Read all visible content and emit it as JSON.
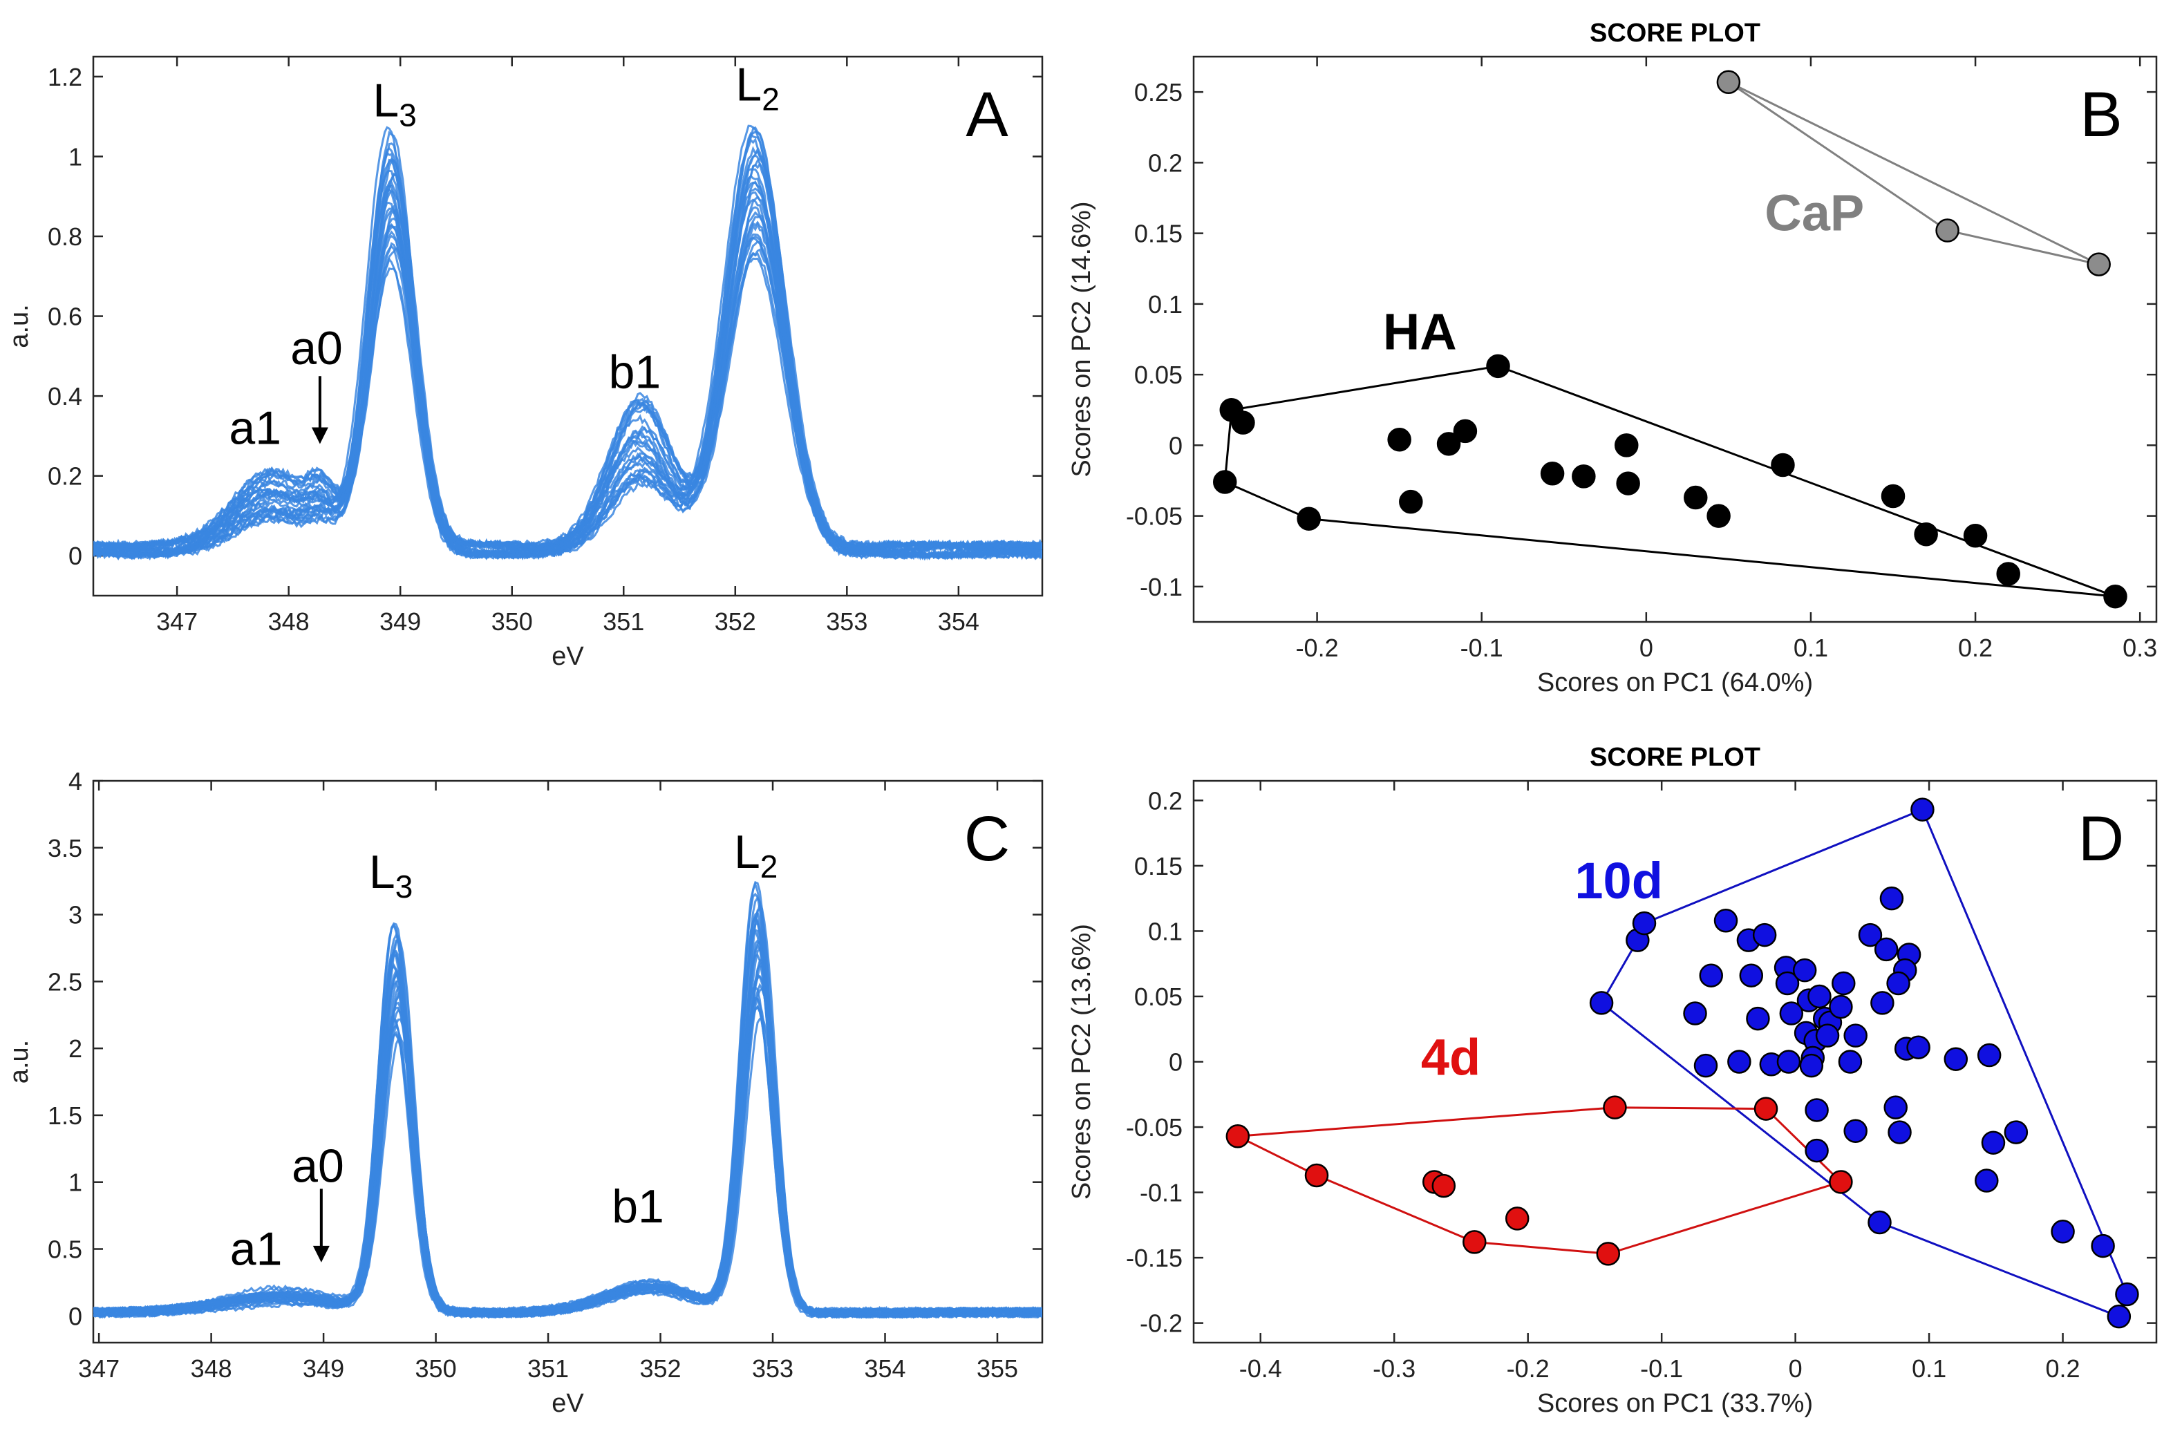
{
  "chart_data": [
    {
      "id": "A",
      "type": "line",
      "panel_letter": "A",
      "xlabel": "eV",
      "ylabel": "a.u.",
      "xlim": [
        346.25,
        354.75
      ],
      "ylim": [
        -0.1,
        1.25
      ],
      "xticks": [
        347,
        348,
        349,
        350,
        351,
        352,
        353,
        354
      ],
      "yticks": [
        0,
        0.2,
        0.4,
        0.6,
        0.8,
        1,
        1.2
      ],
      "ytick_labels": [
        "0",
        "0.2",
        "0.4",
        "0.6",
        "0.8",
        "1",
        "1.2"
      ],
      "series_color": "#3a86e0",
      "n_spectra": 30,
      "spectrum_shape": {
        "baseline": 0.03,
        "peaks": [
          {
            "center": 347.85,
            "width": 0.35,
            "height": 0.14
          },
          {
            "center": 348.3,
            "width": 0.12,
            "height": 0.07
          },
          {
            "center": 348.92,
            "width": 0.2,
            "height": 1.0
          },
          {
            "center": 351.15,
            "width": 0.28,
            "height": 0.28
          },
          {
            "center": 352.18,
            "width": 0.26,
            "height": 1.02
          }
        ],
        "scale_range": [
          0.72,
          1.04
        ]
      },
      "annotations": [
        {
          "label": "L",
          "sub": "3",
          "x": 348.95,
          "y": 1.1
        },
        {
          "label": "L",
          "sub": "2",
          "x": 352.2,
          "y": 1.14
        },
        {
          "label": "a0",
          "x": 348.25,
          "y": 0.48
        },
        {
          "label": "a1",
          "x": 347.7,
          "y": 0.28
        },
        {
          "label": "b1",
          "x": 351.1,
          "y": 0.42
        }
      ],
      "arrow": {
        "x": 348.28,
        "y_from": 0.45,
        "y_to": 0.28
      }
    },
    {
      "id": "B",
      "type": "scatter",
      "title": "SCORE PLOT",
      "panel_letter": "B",
      "xlabel": "Scores on PC1 (64.0%)",
      "ylabel": "Scores on PC2 (14.6%)",
      "xlim": [
        -0.275,
        0.31
      ],
      "ylim": [
        -0.125,
        0.275
      ],
      "xticks": [
        -0.2,
        -0.1,
        0,
        0.1,
        0.2,
        0.3
      ],
      "xtick_labels": [
        "-0.2",
        "-0.1",
        "0",
        "0.1",
        "0.2",
        "0.3"
      ],
      "yticks": [
        -0.1,
        -0.05,
        0,
        0.05,
        0.1,
        0.15,
        0.2,
        0.25
      ],
      "ytick_labels": [
        "-0.1",
        "-0.05",
        "0",
        "0.05",
        "0.1",
        "0.15",
        "0.2",
        "0.25"
      ],
      "series": [
        {
          "name": "HA",
          "label_color": "#000000",
          "fill": "#000000",
          "hull_color": "#000000",
          "label_pos": [
            -0.16,
            0.068
          ],
          "points": [
            [
              -0.252,
              0.025
            ],
            [
              -0.245,
              0.016
            ],
            [
              -0.256,
              -0.026
            ],
            [
              -0.205,
              -0.052
            ],
            [
              -0.09,
              0.056
            ],
            [
              -0.15,
              0.004
            ],
            [
              -0.143,
              -0.04
            ],
            [
              -0.12,
              0.001
            ],
            [
              -0.11,
              0.01
            ],
            [
              -0.057,
              -0.02
            ],
            [
              -0.038,
              -0.022
            ],
            [
              -0.012,
              0.0
            ],
            [
              -0.011,
              -0.027
            ],
            [
              0.03,
              -0.037
            ],
            [
              0.044,
              -0.05
            ],
            [
              0.083,
              -0.014
            ],
            [
              0.15,
              -0.036
            ],
            [
              0.17,
              -0.063
            ],
            [
              0.2,
              -0.064
            ],
            [
              0.22,
              -0.091
            ],
            [
              0.285,
              -0.107
            ]
          ],
          "hull": [
            [
              -0.09,
              0.056
            ],
            [
              -0.252,
              0.025
            ],
            [
              -0.256,
              -0.026
            ],
            [
              -0.205,
              -0.052
            ],
            [
              0.285,
              -0.107
            ]
          ]
        },
        {
          "name": "CaP",
          "label_color": "#808080",
          "fill": "#8c8c8c",
          "hull_color": "#808080",
          "label_pos": [
            0.072,
            0.152
          ],
          "points": [
            [
              0.05,
              0.257
            ],
            [
              0.183,
              0.152
            ],
            [
              0.275,
              0.128
            ]
          ],
          "hull": [
            [
              0.05,
              0.257
            ],
            [
              0.183,
              0.152
            ],
            [
              0.275,
              0.128
            ]
          ]
        }
      ]
    },
    {
      "id": "C",
      "type": "line",
      "panel_letter": "C",
      "xlabel": "eV",
      "ylabel": "a.u.",
      "xlim": [
        346.95,
        355.4
      ],
      "ylim": [
        -0.2,
        4.0
      ],
      "xticks": [
        347,
        348,
        349,
        350,
        351,
        352,
        353,
        354,
        355
      ],
      "yticks": [
        0,
        0.5,
        1,
        1.5,
        2,
        2.5,
        3,
        3.5,
        4
      ],
      "ytick_labels": [
        "0",
        "0.5",
        "1",
        "1.5",
        "2",
        "2.5",
        "3",
        "3.5",
        "4"
      ],
      "series_color": "#3a86e0",
      "n_spectra": 30,
      "spectrum_shape": {
        "baseline": 0.05,
        "peaks": [
          {
            "center": 348.6,
            "width": 0.5,
            "height": 0.12
          },
          {
            "center": 349.65,
            "width": 0.14,
            "height": 2.6
          },
          {
            "center": 351.9,
            "width": 0.4,
            "height": 0.2
          },
          {
            "center": 352.87,
            "width": 0.14,
            "height": 2.85
          }
        ],
        "scale_range": [
          0.78,
          1.12
        ]
      },
      "annotations": [
        {
          "label": "L",
          "sub": "3",
          "x": 349.6,
          "y": 3.2
        },
        {
          "label": "L",
          "sub": "2",
          "x": 352.85,
          "y": 3.35
        },
        {
          "label": "a0",
          "x": 348.95,
          "y": 1.0
        },
        {
          "label": "a1",
          "x": 348.4,
          "y": 0.38
        },
        {
          "label": "b1",
          "x": 351.8,
          "y": 0.7
        }
      ],
      "arrow": {
        "x": 348.98,
        "y_from": 0.95,
        "y_to": 0.4
      }
    },
    {
      "id": "D",
      "type": "scatter",
      "title": "SCORE PLOT",
      "panel_letter": "D",
      "xlabel": "Scores on PC1 (33.7%)",
      "ylabel": "Scores on PC2 (13.6%)",
      "xlim": [
        -0.45,
        0.27
      ],
      "ylim": [
        -0.215,
        0.215
      ],
      "xticks": [
        -0.4,
        -0.3,
        -0.2,
        -0.1,
        0,
        0.1,
        0.2
      ],
      "xtick_labels": [
        "-0.4",
        "-0.3",
        "-0.2",
        "-0.1",
        "0",
        "0.1",
        "0.2"
      ],
      "yticks": [
        -0.2,
        -0.15,
        -0.1,
        -0.05,
        0,
        0.05,
        0.1,
        0.15,
        0.2
      ],
      "ytick_labels": [
        "-0.2",
        "-0.15",
        "-0.1",
        "-0.05",
        "0",
        "0.05",
        "0.1",
        "0.15",
        "0.2"
      ],
      "series": [
        {
          "name": "10d",
          "label_color": "#1010e0",
          "fill": "#1010e0",
          "hull_color": "#1010c0",
          "label_pos": [
            -0.165,
            0.125
          ],
          "points": [
            [
              0.095,
              0.193
            ],
            [
              -0.145,
              0.045
            ],
            [
              -0.118,
              0.093
            ],
            [
              -0.113,
              0.106
            ],
            [
              -0.075,
              0.037
            ],
            [
              -0.063,
              0.066
            ],
            [
              -0.067,
              -0.003
            ],
            [
              -0.052,
              0.108
            ],
            [
              -0.042,
              0.0
            ],
            [
              -0.035,
              0.093
            ],
            [
              -0.023,
              0.097
            ],
            [
              -0.033,
              0.066
            ],
            [
              -0.028,
              0.033
            ],
            [
              -0.018,
              -0.002
            ],
            [
              -0.007,
              0.072
            ],
            [
              -0.006,
              0.06
            ],
            [
              0.007,
              0.07
            ],
            [
              0.01,
              0.047
            ],
            [
              0.018,
              0.05
            ],
            [
              0.022,
              0.033
            ],
            [
              0.008,
              0.022
            ],
            [
              0.015,
              0.016
            ],
            [
              0.026,
              0.03
            ],
            [
              0.036,
              0.06
            ],
            [
              0.034,
              0.042
            ],
            [
              0.041,
              0.0
            ],
            [
              0.045,
              0.02
            ],
            [
              0.024,
              0.02
            ],
            [
              0.013,
              0.003
            ],
            [
              -0.005,
              0.0
            ],
            [
              -0.003,
              0.037
            ],
            [
              0.012,
              -0.003
            ],
            [
              0.056,
              0.097
            ],
            [
              0.068,
              0.086
            ],
            [
              0.085,
              0.082
            ],
            [
              0.065,
              0.045
            ],
            [
              0.082,
              0.07
            ],
            [
              0.072,
              0.125
            ],
            [
              0.077,
              0.06
            ],
            [
              0.083,
              0.01
            ],
            [
              0.092,
              0.011
            ],
            [
              0.016,
              -0.037
            ],
            [
              0.016,
              -0.068
            ],
            [
              0.075,
              -0.035
            ],
            [
              0.045,
              -0.053
            ],
            [
              0.078,
              -0.054
            ],
            [
              0.12,
              0.002
            ],
            [
              0.145,
              0.005
            ],
            [
              0.148,
              -0.062
            ],
            [
              0.165,
              -0.054
            ],
            [
              0.143,
              -0.091
            ],
            [
              0.2,
              -0.13
            ],
            [
              0.23,
              -0.141
            ],
            [
              0.248,
              -0.178
            ],
            [
              0.242,
              -0.195
            ],
            [
              0.063,
              -0.123
            ]
          ],
          "hull": [
            [
              0.095,
              0.193
            ],
            [
              0.248,
              -0.178
            ],
            [
              0.242,
              -0.195
            ],
            [
              0.063,
              -0.123
            ],
            [
              -0.145,
              0.045
            ],
            [
              -0.118,
              0.093
            ],
            [
              -0.113,
              0.106
            ]
          ]
        },
        {
          "name": "4d",
          "label_color": "#e01010",
          "fill": "#e01010",
          "hull_color": "#d01010",
          "label_pos": [
            -0.28,
            -0.01
          ],
          "points": [
            [
              -0.417,
              -0.057
            ],
            [
              -0.358,
              -0.087
            ],
            [
              -0.27,
              -0.092
            ],
            [
              -0.263,
              -0.095
            ],
            [
              -0.24,
              -0.138
            ],
            [
              -0.208,
              -0.12
            ],
            [
              -0.14,
              -0.147
            ],
            [
              -0.135,
              -0.035
            ],
            [
              -0.022,
              -0.036
            ],
            [
              0.034,
              -0.092
            ]
          ],
          "hull": [
            [
              -0.417,
              -0.057
            ],
            [
              -0.135,
              -0.035
            ],
            [
              -0.022,
              -0.036
            ],
            [
              0.034,
              -0.092
            ],
            [
              -0.14,
              -0.147
            ],
            [
              -0.24,
              -0.138
            ],
            [
              -0.358,
              -0.087
            ]
          ]
        }
      ]
    }
  ]
}
